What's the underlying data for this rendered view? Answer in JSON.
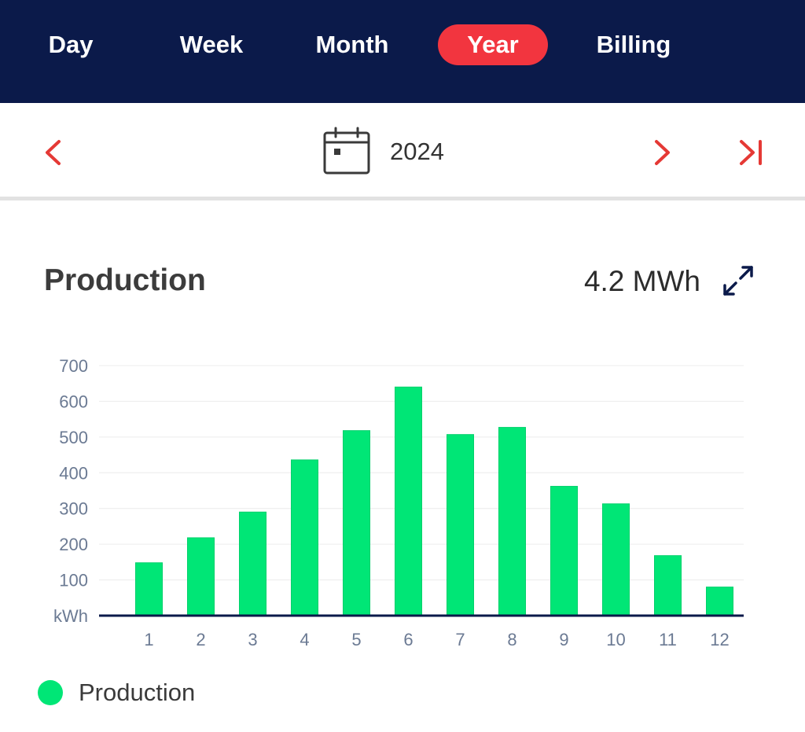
{
  "tabs": [
    {
      "label": "Day",
      "active": false
    },
    {
      "label": "Week",
      "active": false
    },
    {
      "label": "Month",
      "active": false
    },
    {
      "label": "Year",
      "active": true
    },
    {
      "label": "Billing",
      "active": false
    }
  ],
  "date_nav": {
    "value": "2024",
    "prev_icon": "chevron-left-icon",
    "next_icon": "chevron-right-icon",
    "last_icon": "skip-to-end-icon",
    "calendar_icon": "calendar-icon"
  },
  "card": {
    "title": "Production",
    "total": "4.2 MWh",
    "expand_icon": "expand-icon"
  },
  "colors": {
    "nav_background": "#0b1a4a",
    "active_tab": "#f2353f",
    "accent": "#e53935",
    "bar": "#00e676",
    "axis_text": "#6b7a93",
    "baseline": "#0b1a4a"
  },
  "chart_data": {
    "type": "bar",
    "categories": [
      "1",
      "2",
      "3",
      "4",
      "5",
      "6",
      "7",
      "8",
      "9",
      "10",
      "11",
      "12"
    ],
    "series": [
      {
        "name": "Production",
        "values": [
          148,
          218,
          290,
          436,
          518,
          640,
          507,
          527,
          362,
          313,
          168,
          80
        ]
      }
    ],
    "ylabel": "kWh",
    "yticks": [
      100,
      200,
      300,
      400,
      500,
      600,
      700
    ],
    "ylim": [
      0,
      700
    ],
    "grid": true,
    "legend": "bottom-left"
  },
  "legend": {
    "items": [
      {
        "label": "Production"
      }
    ]
  }
}
